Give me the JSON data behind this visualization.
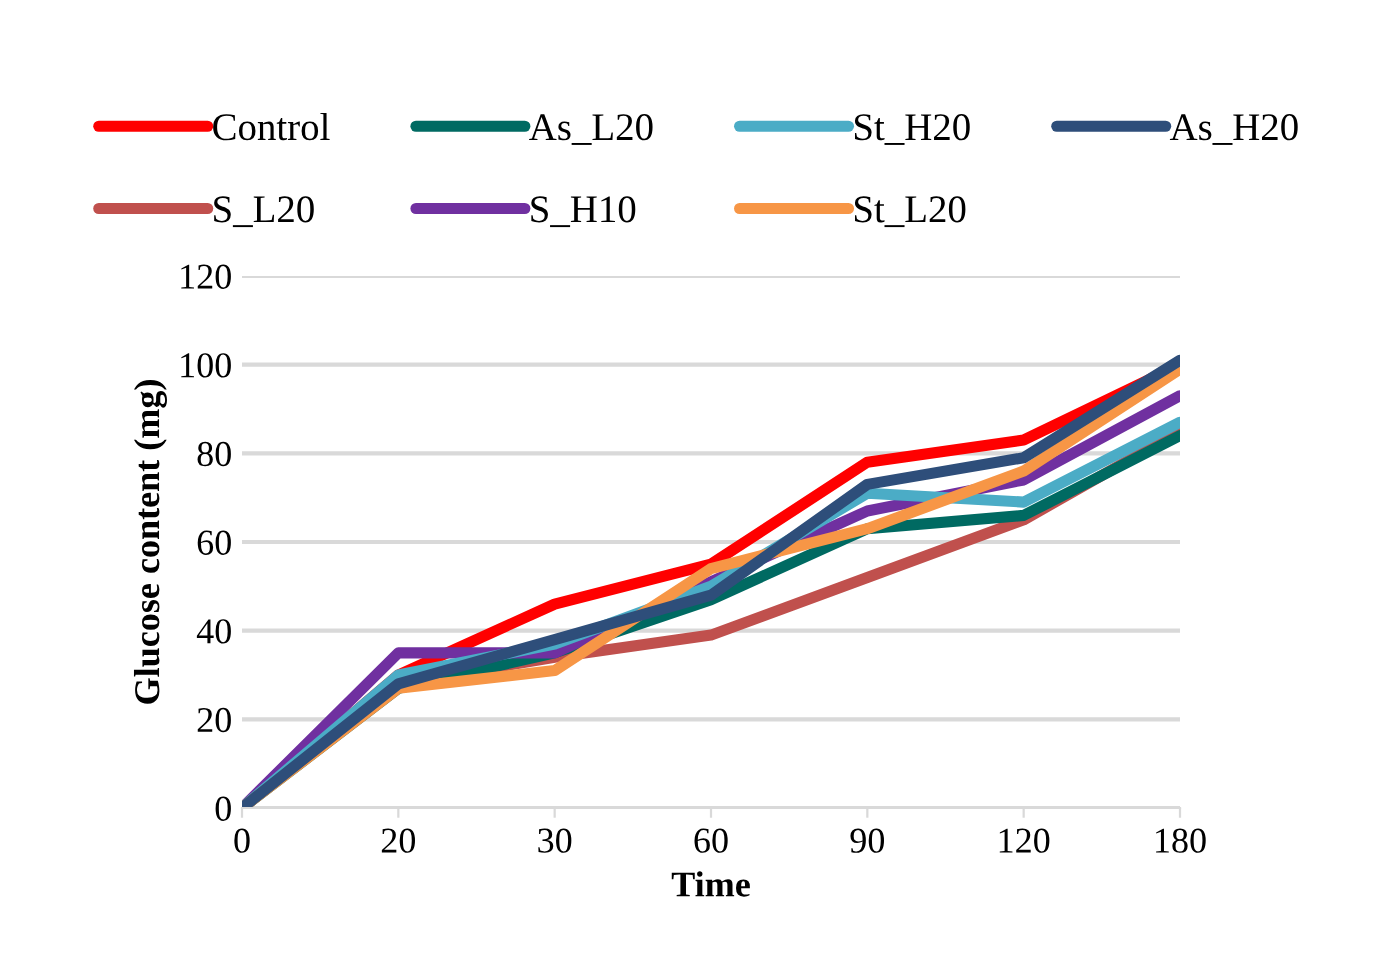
{
  "chart_data": {
    "type": "line",
    "xlabel": "Time",
    "ylabel": "Glucose content (mg)",
    "categories": [
      "0",
      "20",
      "30",
      "60",
      "90",
      "120",
      "180"
    ],
    "series": [
      {
        "name": "Control",
        "color": "#ff0000",
        "values": [
          0,
          30,
          46,
          55,
          78,
          83,
          100
        ]
      },
      {
        "name": "S_L20",
        "color": "#c0504d",
        "values": [
          0,
          28,
          34,
          39,
          52,
          65,
          85
        ]
      },
      {
        "name": "As_L20",
        "color": "#006a62",
        "values": [
          0,
          27,
          35,
          47,
          63,
          66,
          84
        ]
      },
      {
        "name": "S_H10",
        "color": "#7030a0",
        "values": [
          0,
          35,
          35,
          51,
          67,
          74,
          93
        ]
      },
      {
        "name": "St_H20",
        "color": "#4bacc6",
        "values": [
          0,
          30,
          37,
          50,
          71,
          69,
          87
        ]
      },
      {
        "name": "St_L20",
        "color": "#f79646",
        "values": [
          0,
          27,
          31,
          54,
          63,
          76,
          99
        ]
      },
      {
        "name": "As_H20",
        "color": "#2e4e7a",
        "values": [
          0,
          28,
          38,
          48,
          73,
          79,
          101
        ]
      }
    ],
    "ylim": [
      0,
      120
    ],
    "yticks": [
      0,
      20,
      40,
      60,
      80,
      100,
      120
    ],
    "grid": "y",
    "legend": "top",
    "marker": "none",
    "line_style": "solid"
  }
}
